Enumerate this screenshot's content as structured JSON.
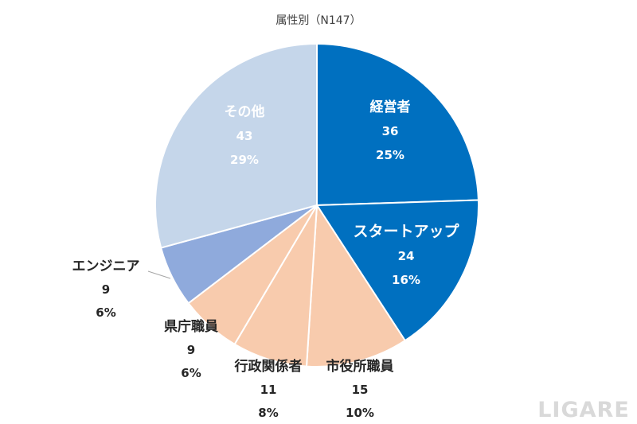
{
  "chart_data": {
    "type": "pie",
    "title": "属性別（N147）",
    "start_angle_deg": 0,
    "direction": "clockwise",
    "slices": [
      {
        "name": "経営者",
        "count": "36",
        "percent": "25%",
        "value": 36,
        "color": "#0070C0",
        "label_style": "inside"
      },
      {
        "name": "スタートアップ",
        "count": "24",
        "percent": "16%",
        "value": 24,
        "color": "#0070C0",
        "label_style": "inside"
      },
      {
        "name": "市役所職員",
        "count": "15",
        "percent": "10%",
        "value": 15,
        "color": "#F8CBAD",
        "label_style": "outside"
      },
      {
        "name": "行政関係者",
        "count": "11",
        "percent": "8%",
        "value": 11,
        "color": "#F8CBAD",
        "label_style": "outside"
      },
      {
        "name": "県庁職員",
        "count": "9",
        "percent": "6%",
        "value": 9,
        "color": "#F8CBAD",
        "label_style": "outside"
      },
      {
        "name": "エンジニア",
        "count": "9",
        "percent": "6%",
        "value": 9,
        "color": "#8FAADC",
        "label_style": "outside"
      },
      {
        "name": "その他",
        "count": "43",
        "percent": "29%",
        "value": 43,
        "color": "#C5D6EA",
        "label_style": "inside"
      }
    ]
  },
  "watermark": "LIGARE"
}
